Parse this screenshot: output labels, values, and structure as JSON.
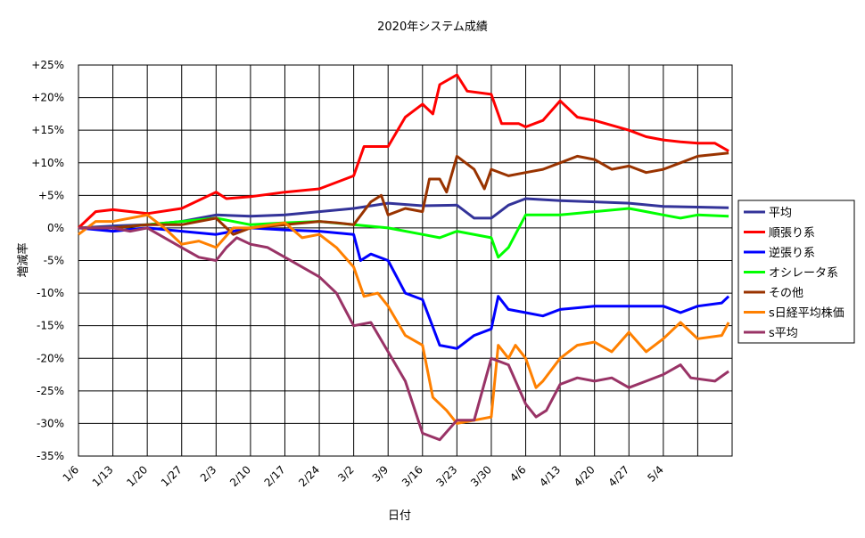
{
  "chart_data": {
    "type": "line",
    "title": "2020年システム成績",
    "xlabel": "日付",
    "ylabel": "増減率",
    "x_tick_labels": [
      "1/6",
      "1/13",
      "1/20",
      "1/27",
      "2/3",
      "2/10",
      "2/17",
      "2/24",
      "3/2",
      "3/9",
      "3/16",
      "3/23",
      "3/30",
      "4/6",
      "4/13",
      "4/20",
      "4/27",
      "5/4"
    ],
    "y_tick_labels": [
      "+25%",
      "+20%",
      "+15%",
      "+10%",
      "+5%",
      "0%",
      "-5%",
      "-10%",
      "-15%",
      "-20%",
      "-25%",
      "-30%",
      "-35%"
    ],
    "ylim": [
      -35,
      25
    ],
    "xlim": [
      0,
      19
    ],
    "grid": true,
    "legend_position": "right",
    "series": [
      {
        "name": "平均",
        "color": "#333399",
        "points": [
          [
            0,
            0
          ],
          [
            1,
            0.3
          ],
          [
            2,
            0.5
          ],
          [
            3,
            1
          ],
          [
            4,
            2
          ],
          [
            5,
            1.8
          ],
          [
            6,
            2
          ],
          [
            7,
            2.5
          ],
          [
            8,
            3
          ],
          [
            9,
            3.8
          ],
          [
            10,
            3.4
          ],
          [
            11,
            3.5
          ],
          [
            11.5,
            1.5
          ],
          [
            12,
            1.5
          ],
          [
            12.5,
            3.5
          ],
          [
            13,
            4.5
          ],
          [
            14,
            4.2
          ],
          [
            15,
            4
          ],
          [
            16,
            3.8
          ],
          [
            17,
            3.3
          ],
          [
            18,
            3.2
          ],
          [
            18.9,
            3.1
          ]
        ]
      },
      {
        "name": "順張り系",
        "color": "#ff0000",
        "points": [
          [
            0,
            0
          ],
          [
            0.5,
            2.5
          ],
          [
            1,
            2.8
          ],
          [
            2,
            2.2
          ],
          [
            3,
            3
          ],
          [
            4,
            5.5
          ],
          [
            4.3,
            4.5
          ],
          [
            5,
            4.8
          ],
          [
            6,
            5.5
          ],
          [
            7,
            6
          ],
          [
            8,
            8
          ],
          [
            8.3,
            12.5
          ],
          [
            9,
            12.5
          ],
          [
            9.5,
            17
          ],
          [
            10,
            19
          ],
          [
            10.3,
            17.5
          ],
          [
            10.5,
            22
          ],
          [
            11,
            23.5
          ],
          [
            11.3,
            21
          ],
          [
            12,
            20.5
          ],
          [
            12.3,
            16
          ],
          [
            12.8,
            16
          ],
          [
            13,
            15.5
          ],
          [
            13.5,
            16.5
          ],
          [
            14,
            19.5
          ],
          [
            14.5,
            17
          ],
          [
            15,
            16.5
          ],
          [
            16,
            15
          ],
          [
            16.5,
            14
          ],
          [
            17,
            13.5
          ],
          [
            17.5,
            13.2
          ],
          [
            18,
            13
          ],
          [
            18.5,
            13
          ],
          [
            18.9,
            11.8
          ]
        ]
      },
      {
        "name": "逆張り系",
        "color": "#0000ff",
        "points": [
          [
            0,
            0
          ],
          [
            1,
            -0.5
          ],
          [
            2,
            0
          ],
          [
            3,
            -0.5
          ],
          [
            4,
            -1
          ],
          [
            5,
            0
          ],
          [
            6,
            -0.3
          ],
          [
            7,
            -0.5
          ],
          [
            8,
            -1
          ],
          [
            8.2,
            -5
          ],
          [
            8.5,
            -4
          ],
          [
            9,
            -5
          ],
          [
            9.5,
            -10
          ],
          [
            10,
            -11
          ],
          [
            10.5,
            -18
          ],
          [
            11,
            -18.5
          ],
          [
            11.5,
            -16.5
          ],
          [
            12,
            -15.5
          ],
          [
            12.2,
            -10.5
          ],
          [
            12.5,
            -12.5
          ],
          [
            13,
            -13
          ],
          [
            13.5,
            -13.5
          ],
          [
            14,
            -12.5
          ],
          [
            15,
            -12
          ],
          [
            16,
            -12
          ],
          [
            17,
            -12
          ],
          [
            17.5,
            -13
          ],
          [
            18,
            -12
          ],
          [
            18.7,
            -11.5
          ],
          [
            18.9,
            -10.5
          ]
        ]
      },
      {
        "name": "オシレータ系",
        "color": "#00ff00",
        "points": [
          [
            0,
            0
          ],
          [
            1,
            0
          ],
          [
            2,
            0.5
          ],
          [
            3,
            1
          ],
          [
            4,
            1.5
          ],
          [
            5,
            0.5
          ],
          [
            6,
            0.8
          ],
          [
            7,
            1
          ],
          [
            8,
            0.5
          ],
          [
            9,
            0
          ],
          [
            10,
            -1
          ],
          [
            10.5,
            -1.5
          ],
          [
            11,
            -0.5
          ],
          [
            12,
            -1.5
          ],
          [
            12.2,
            -4.5
          ],
          [
            12.5,
            -3
          ],
          [
            13,
            2
          ],
          [
            14,
            2
          ],
          [
            15,
            2.5
          ],
          [
            16,
            3
          ],
          [
            16.5,
            2.5
          ],
          [
            17,
            2
          ],
          [
            17.5,
            1.5
          ],
          [
            18,
            2
          ],
          [
            18.9,
            1.8
          ]
        ]
      },
      {
        "name": "その他",
        "color": "#993300",
        "points": [
          [
            0,
            0
          ],
          [
            1,
            0
          ],
          [
            2,
            0.5
          ],
          [
            3,
            0.5
          ],
          [
            4,
            1.5
          ],
          [
            4.5,
            -1
          ],
          [
            5,
            0
          ],
          [
            6,
            0.5
          ],
          [
            7,
            1
          ],
          [
            7.5,
            0.8
          ],
          [
            8,
            0.5
          ],
          [
            8.5,
            4
          ],
          [
            8.8,
            5
          ],
          [
            9,
            2
          ],
          [
            9.5,
            3
          ],
          [
            10,
            2.5
          ],
          [
            10.2,
            7.5
          ],
          [
            10.5,
            7.5
          ],
          [
            10.7,
            5.5
          ],
          [
            11,
            11
          ],
          [
            11.5,
            9
          ],
          [
            11.8,
            6
          ],
          [
            12,
            9
          ],
          [
            12.5,
            8
          ],
          [
            13,
            8.5
          ],
          [
            13.5,
            9
          ],
          [
            14,
            10
          ],
          [
            14.5,
            11
          ],
          [
            15,
            10.5
          ],
          [
            15.5,
            9
          ],
          [
            16,
            9.5
          ],
          [
            16.5,
            8.5
          ],
          [
            17,
            9
          ],
          [
            17.5,
            10
          ],
          [
            18,
            11
          ],
          [
            18.9,
            11.5
          ]
        ]
      },
      {
        "name": "s日経平均株価",
        "color": "#ff8000",
        "points": [
          [
            0,
            -1
          ],
          [
            0.5,
            1
          ],
          [
            1,
            1
          ],
          [
            2,
            2
          ],
          [
            2.5,
            0
          ],
          [
            3,
            -2.5
          ],
          [
            3.5,
            -2
          ],
          [
            4,
            -3
          ],
          [
            4.5,
            0
          ],
          [
            5,
            0
          ],
          [
            6,
            0.8
          ],
          [
            6.5,
            -1.5
          ],
          [
            7,
            -1
          ],
          [
            7.5,
            -3
          ],
          [
            8,
            -6
          ],
          [
            8.3,
            -10.5
          ],
          [
            8.7,
            -10
          ],
          [
            9,
            -12
          ],
          [
            9.5,
            -16.5
          ],
          [
            10,
            -18
          ],
          [
            10.3,
            -26
          ],
          [
            10.7,
            -28
          ],
          [
            11,
            -30
          ],
          [
            11.5,
            -29.5
          ],
          [
            12,
            -29
          ],
          [
            12.2,
            -18
          ],
          [
            12.5,
            -20
          ],
          [
            12.7,
            -18
          ],
          [
            13,
            -20
          ],
          [
            13.3,
            -24.5
          ],
          [
            13.5,
            -23.5
          ],
          [
            14,
            -20
          ],
          [
            14.5,
            -18
          ],
          [
            15,
            -17.5
          ],
          [
            15.5,
            -19
          ],
          [
            16,
            -16
          ],
          [
            16.5,
            -19
          ],
          [
            17,
            -17
          ],
          [
            17.5,
            -14.5
          ],
          [
            18,
            -17
          ],
          [
            18.7,
            -16.5
          ],
          [
            18.9,
            -14.5
          ]
        ]
      },
      {
        "name": "s平均",
        "color": "#993366",
        "points": [
          [
            0,
            0
          ],
          [
            0.5,
            0
          ],
          [
            1,
            0
          ],
          [
            1.5,
            -0.5
          ],
          [
            2,
            0
          ],
          [
            3,
            -3
          ],
          [
            3.5,
            -4.5
          ],
          [
            4,
            -5
          ],
          [
            4.3,
            -3
          ],
          [
            4.6,
            -1.5
          ],
          [
            5,
            -2.5
          ],
          [
            5.5,
            -3
          ],
          [
            6,
            -4.5
          ],
          [
            6.5,
            -6
          ],
          [
            7,
            -7.5
          ],
          [
            7.5,
            -10
          ],
          [
            8,
            -15
          ],
          [
            8.5,
            -14.5
          ],
          [
            9,
            -19
          ],
          [
            9.5,
            -23.5
          ],
          [
            10,
            -31.5
          ],
          [
            10.5,
            -32.5
          ],
          [
            11,
            -29.5
          ],
          [
            11.5,
            -29.5
          ],
          [
            12,
            -20
          ],
          [
            12.5,
            -21
          ],
          [
            13,
            -27
          ],
          [
            13.3,
            -29
          ],
          [
            13.6,
            -28
          ],
          [
            14,
            -24
          ],
          [
            14.5,
            -23
          ],
          [
            15,
            -23.5
          ],
          [
            15.5,
            -23
          ],
          [
            16,
            -24.5
          ],
          [
            16.5,
            -23.5
          ],
          [
            17,
            -22.5
          ],
          [
            17.5,
            -21
          ],
          [
            17.8,
            -23
          ],
          [
            18.5,
            -23.5
          ],
          [
            18.9,
            -22
          ]
        ]
      }
    ]
  }
}
